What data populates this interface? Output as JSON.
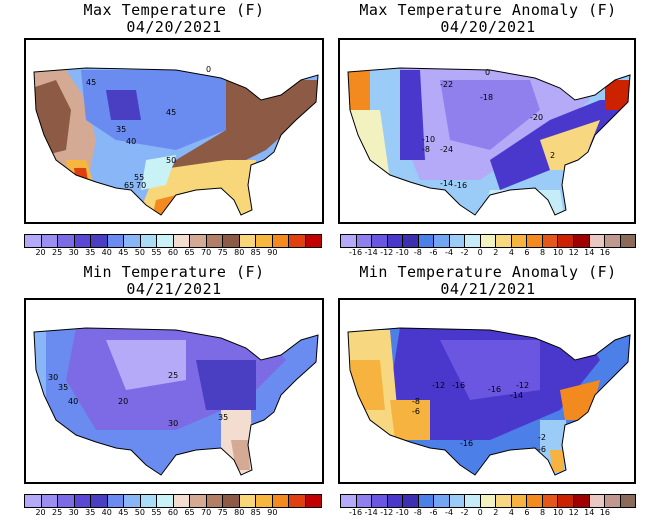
{
  "temp_palette": [
    "#b5aaf7",
    "#9c8ef0",
    "#7d6be6",
    "#5a47d6",
    "#4a3fc2",
    "#6a8bf0",
    "#88b6f7",
    "#a8dcf7",
    "#c9f2f7",
    "#f2ddd0",
    "#d4aa94",
    "#b27f66",
    "#8c5a45",
    "#f7d77a",
    "#f7b640",
    "#f28a20",
    "#e04010",
    "#c20000"
  ],
  "anom_palette": [
    "#b5aaf7",
    "#8f80ee",
    "#6a56e0",
    "#4a38cc",
    "#3c30b0",
    "#4d7fe8",
    "#73a6f2",
    "#9bcbf7",
    "#c6ecf7",
    "#f2f2c0",
    "#f7d880",
    "#f7b340",
    "#f28a20",
    "#e4561a",
    "#cc2200",
    "#a00000",
    "#e8c8c0",
    "#c09890",
    "#8c6a5a"
  ],
  "temp_ticks": [
    "20",
    "25",
    "30",
    "35",
    "40",
    "45",
    "50",
    "55",
    "60",
    "65",
    "70",
    "75",
    "80",
    "85",
    "90"
  ],
  "anom_ticks": [
    "-16",
    "-14",
    "-12",
    "-10",
    "-8",
    "-6",
    "-4",
    "-2",
    "0",
    "2",
    "4",
    "6",
    "8",
    "10",
    "12",
    "14",
    "16"
  ],
  "panels": {
    "tl": {
      "title_line1": "Max Temperature (F)",
      "title_line2": "04/20/2021",
      "labels": [
        "45",
        "45",
        "35",
        "40",
        "50",
        "55",
        "65",
        "70",
        "0"
      ]
    },
    "tr": {
      "title_line1": "Max Temperature Anomaly (F)",
      "title_line2": "04/20/2021",
      "labels": [
        "-22",
        "-18",
        "-20",
        "-10",
        "-8",
        "-24",
        "-14",
        "-16",
        "0",
        "2"
      ]
    },
    "bl": {
      "title_line1": "Min Temperature (F)",
      "title_line2": "04/21/2021",
      "labels": [
        "30",
        "35",
        "40",
        "20",
        "25",
        "30",
        "35"
      ]
    },
    "br": {
      "title_line1": "Min Temperature Anomaly (F)",
      "title_line2": "04/21/2021",
      "labels": [
        "-12",
        "-16",
        "-16",
        "-14",
        "-12",
        "-8",
        "-6",
        "-16",
        "-2",
        "-6"
      ]
    }
  }
}
